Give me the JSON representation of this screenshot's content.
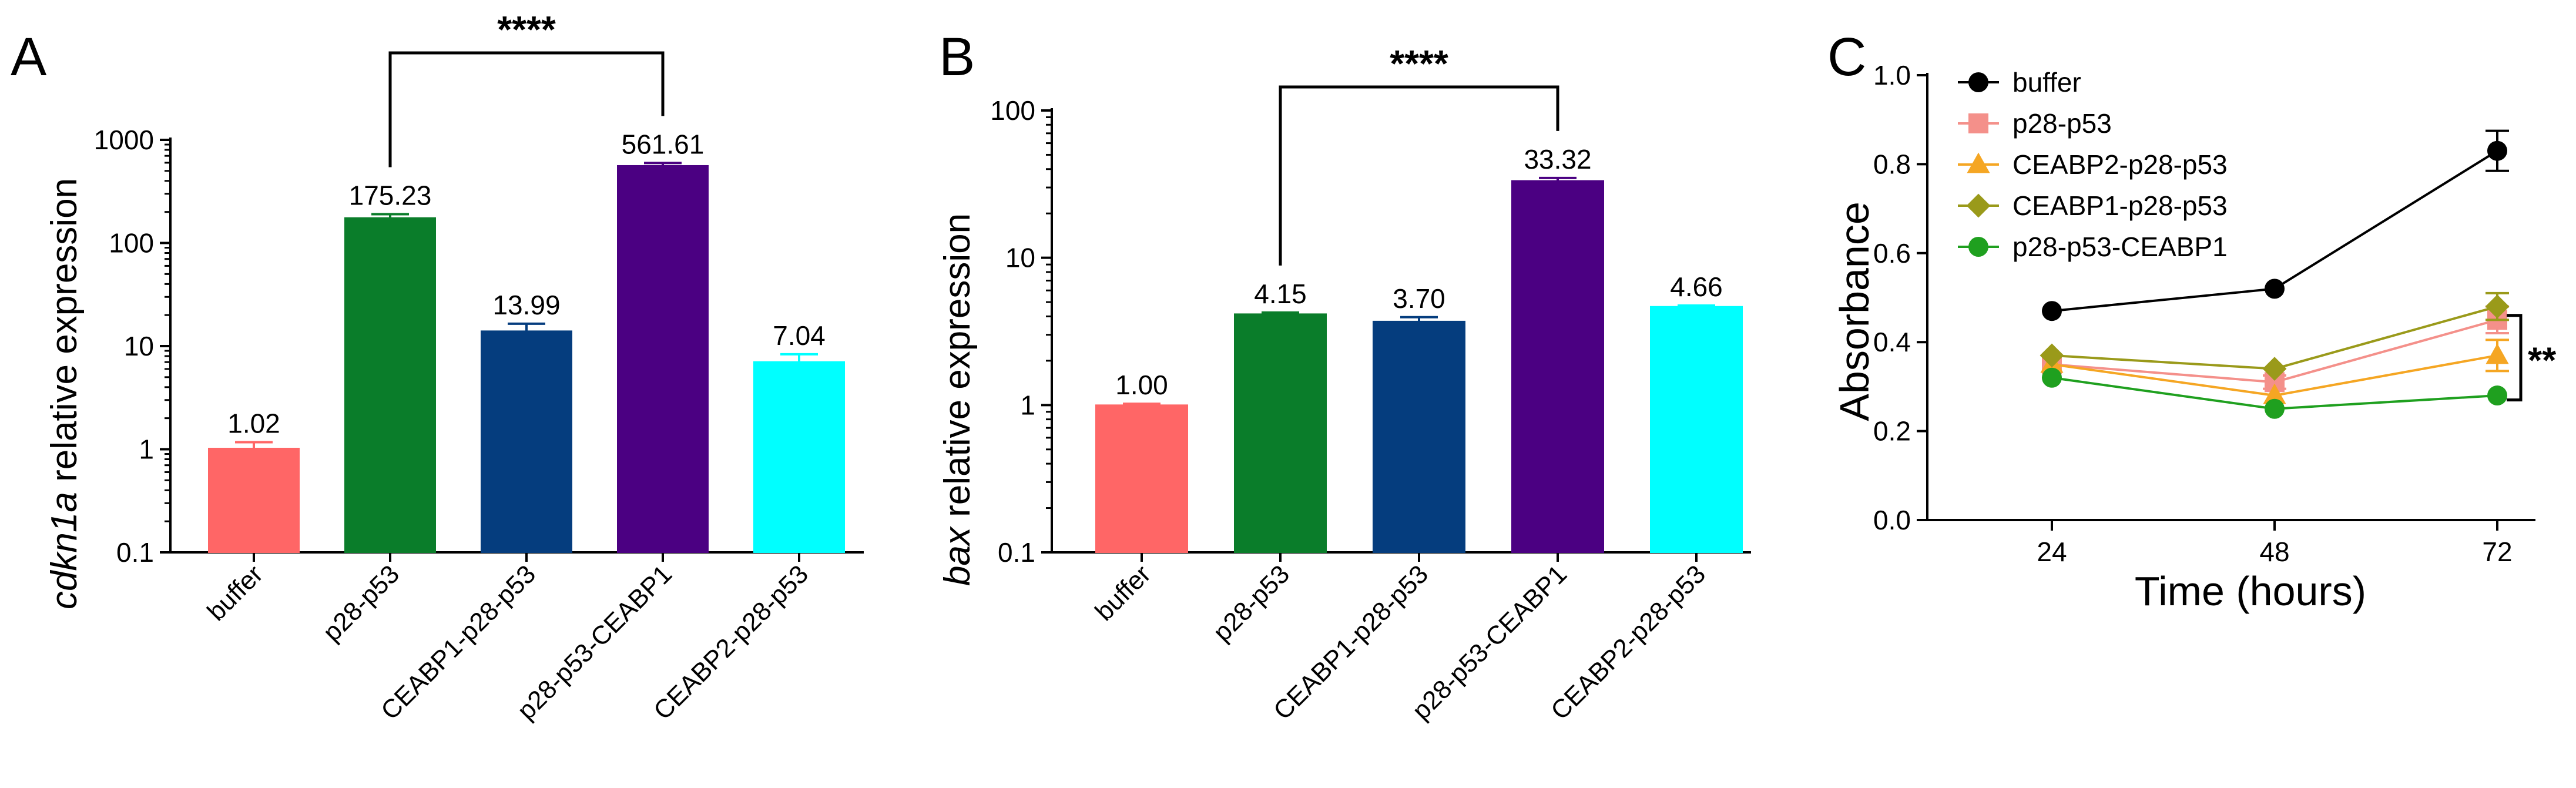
{
  "figure": {
    "panels": [
      {
        "id": "A",
        "panel_label": "A",
        "ylabel_italic": "cdkn1a",
        "ylabel_rest": " relative expression",
        "ytick_labels": [
          "0.1",
          "1",
          "10",
          "100",
          "1000"
        ],
        "significance": "****",
        "colors": [
          "#ff6666",
          "#0a7d2a",
          "#053d7e",
          "#4b0082",
          "#00ffff"
        ]
      },
      {
        "id": "B",
        "panel_label": "B",
        "ylabel_italic": "bax",
        "ylabel_rest": " relative expression",
        "ytick_labels": [
          "0.1",
          "1",
          "10",
          "100"
        ],
        "significance": "****",
        "colors": [
          "#ff6666",
          "#0a7d2a",
          "#053d7e",
          "#4b0082",
          "#00ffff"
        ]
      },
      {
        "id": "C",
        "panel_label": "C",
        "ylabel": "Absorbance",
        "xlabel": "Time (hours)",
        "ytick_labels": [
          "0.0",
          "0.2",
          "0.4",
          "0.6",
          "0.8",
          "1.0"
        ],
        "xtick_labels": [
          "24",
          "48",
          "72"
        ],
        "significance": "**",
        "series_colors": [
          "#000000",
          "#f4908a",
          "#f5a623",
          "#9a9a1a",
          "#1fa01f"
        ],
        "series_markers": [
          "circle",
          "square",
          "triangle",
          "diamond",
          "circle"
        ]
      }
    ]
  },
  "chart_data": [
    {
      "type": "bar",
      "panel": "A",
      "title": "",
      "xlabel": "",
      "ylabel": "cdkn1a relative expression",
      "yscale": "log",
      "ylim": [
        0.1,
        1000
      ],
      "categories": [
        "buffer",
        "p28-p53",
        "CEABP1-p28-p53",
        "p28-p53-CEABP1",
        "CEABP2-p28-p53"
      ],
      "values": [
        1.02,
        175.23,
        13.99,
        561.61,
        7.04
      ],
      "value_labels": [
        "1.02",
        "175.23",
        "13.99",
        "561.61",
        "7.04"
      ],
      "errors": [
        0.15,
        15,
        2.5,
        35,
        1.3
      ],
      "significance": {
        "between": [
          "p28-p53",
          "p28-p53-CEABP1"
        ],
        "label": "****"
      },
      "grid": false
    },
    {
      "type": "bar",
      "panel": "B",
      "title": "",
      "xlabel": "",
      "ylabel": "bax relative expression",
      "yscale": "log",
      "ylim": [
        0.1,
        100
      ],
      "categories": [
        "buffer",
        "p28-p53",
        "CEABP1-p28-p53",
        "p28-p53-CEABP1",
        "CEABP2-p28-p53"
      ],
      "values": [
        1.0,
        4.15,
        3.7,
        33.32,
        4.66
      ],
      "value_labels": [
        "1.00",
        "4.15",
        "3.70",
        "33.32",
        "4.66"
      ],
      "errors": [
        0.02,
        0.1,
        0.25,
        1.5,
        0.08
      ],
      "significance": {
        "between": [
          "p28-p53",
          "p28-p53-CEABP1"
        ],
        "label": "****"
      },
      "grid": false
    },
    {
      "type": "line",
      "panel": "C",
      "title": "",
      "xlabel": "Time (hours)",
      "ylabel": "Absorbance",
      "ylim": [
        0.0,
        1.0
      ],
      "x": [
        24,
        48,
        72
      ],
      "series": [
        {
          "name": "buffer",
          "values": [
            0.47,
            0.52,
            0.83
          ],
          "errors": [
            0.01,
            0.01,
            0.045
          ]
        },
        {
          "name": "p28-p53",
          "values": [
            0.35,
            0.31,
            0.45
          ],
          "errors": [
            0.01,
            0.015,
            0.03
          ]
        },
        {
          "name": "CEABP2-p28-p53",
          "values": [
            0.35,
            0.28,
            0.37
          ],
          "errors": [
            0.01,
            0.01,
            0.035
          ]
        },
        {
          "name": "CEABP1-p28-p53",
          "values": [
            0.37,
            0.34,
            0.48
          ],
          "errors": [
            0.01,
            0.01,
            0.03
          ]
        },
        {
          "name": "p28-p53-CEABP1",
          "values": [
            0.32,
            0.25,
            0.28
          ],
          "errors": [
            0.01,
            0.01,
            0.01
          ]
        }
      ],
      "significance": {
        "label": "**",
        "at_x": 72
      },
      "legend": "top-left",
      "grid": false
    }
  ]
}
